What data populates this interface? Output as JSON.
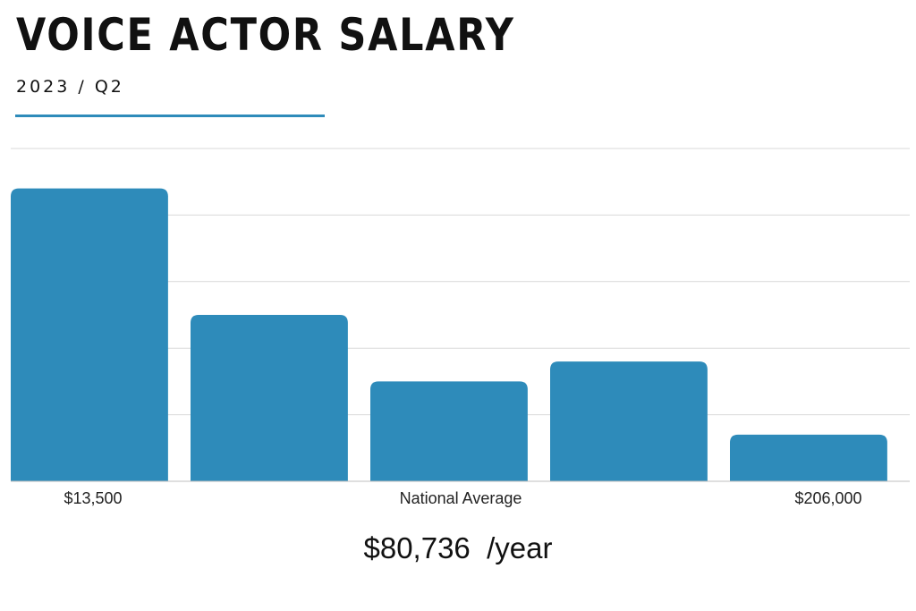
{
  "header": {
    "title": "VOICE ACTOR SALARY",
    "subtitle": "2023 / Q2"
  },
  "colors": {
    "bar": "#2E8BBA",
    "accent": "#2E8BBA",
    "grid": "#d9d9d9",
    "baseline": "#bfbfbf"
  },
  "chart_data": {
    "type": "bar",
    "title": "VOICE ACTOR SALARY",
    "subtitle": "2023 / Q2",
    "values": [
      4.4,
      2.5,
      1.5,
      1.8,
      0.7
    ],
    "ylim": [
      0,
      5
    ],
    "grid": true,
    "x_tick_labels": [
      {
        "bar": 0,
        "text": "$13,500"
      },
      {
        "bar": 2,
        "text": "National Average"
      },
      {
        "bar": 4,
        "text": "$206,000"
      }
    ]
  },
  "caption": {
    "amount": "$80,736",
    "unit": "/year"
  }
}
